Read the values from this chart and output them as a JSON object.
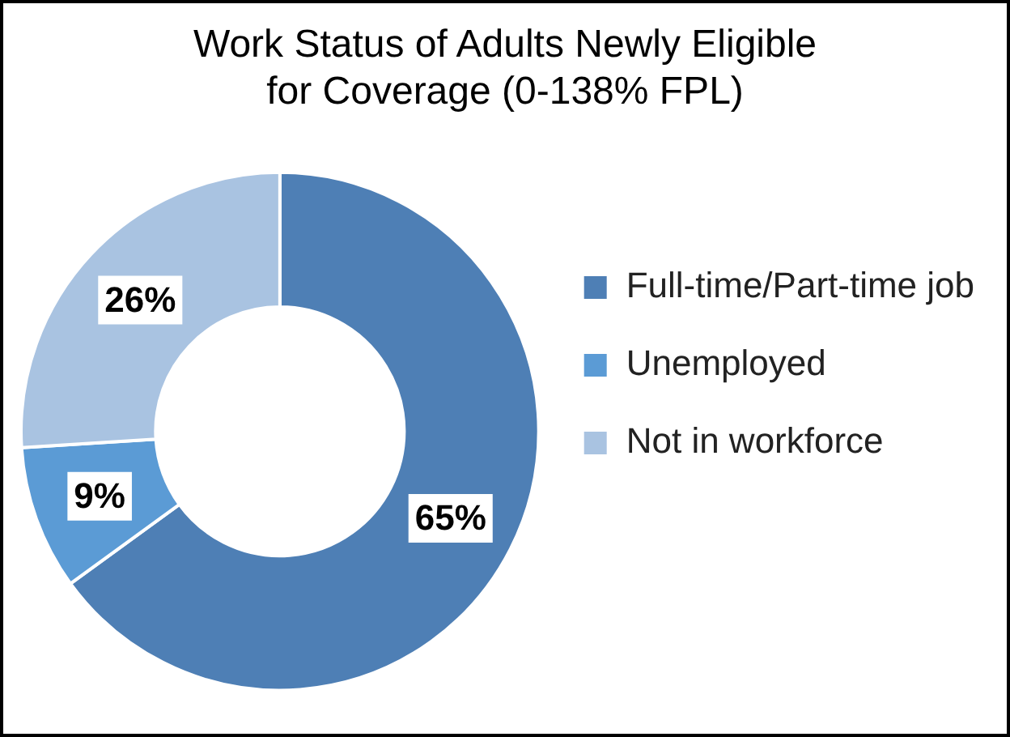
{
  "chart_data": {
    "type": "donut",
    "title": "Work Status of Adults Newly Eligible for Coverage (0-138% FPL)",
    "categories": [
      "Full-time/Part-time job",
      "Unemployed",
      "Not in workforce"
    ],
    "values": [
      65,
      9,
      26
    ],
    "colors": [
      "#4e7fb5",
      "#5b9bd5",
      "#a9c3e1"
    ],
    "value_labels": [
      "65%",
      "9%",
      "26%"
    ],
    "legend": "right"
  }
}
